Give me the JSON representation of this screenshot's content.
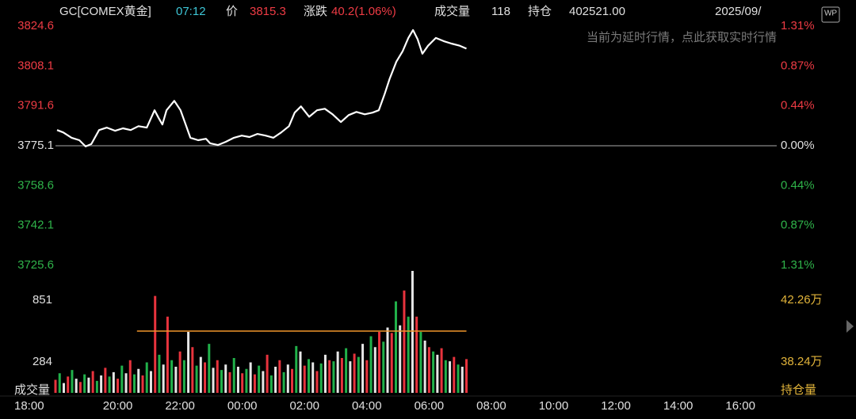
{
  "header": {
    "symbol": "GC[COMEX黄金]",
    "time": "07:12",
    "price_label": "价",
    "price": "3815.3",
    "change_label": "涨跌",
    "change": "40.2(1.06%)",
    "volume_label": "成交量",
    "volume": "118",
    "oi_label": "持仓",
    "oi": "402521.00",
    "date": "2025/09/",
    "notice": "当前为延时行情，点此获取实时行情",
    "logo": "WP"
  },
  "chart_data": [
    {
      "type": "line",
      "xlim": [
        0,
        1390
      ],
      "xticks": [
        {
          "value": 0,
          "label": "18:00"
        },
        {
          "value": 120,
          "label": "20:00"
        },
        {
          "value": 240,
          "label": "22:00"
        },
        {
          "value": 360,
          "label": "00:00"
        },
        {
          "value": 480,
          "label": "02:00"
        },
        {
          "value": 600,
          "label": "04:00"
        },
        {
          "value": 720,
          "label": "06:00"
        },
        {
          "value": 840,
          "label": "08:00"
        },
        {
          "value": 960,
          "label": "10:00"
        },
        {
          "value": 1080,
          "label": "12:00"
        },
        {
          "value": 1200,
          "label": "14:00"
        },
        {
          "value": 1320,
          "label": "16:00"
        }
      ],
      "ylim": [
        3725.6,
        3824.6
      ],
      "yticks": [
        3824.6,
        3808.1,
        3791.6,
        3775.1,
        3758.6,
        3742.1,
        3725.6
      ],
      "y2lim": [
        -1.31,
        1.31
      ],
      "y2ticks": [
        {
          "value": 1.31,
          "label": "1.31%"
        },
        {
          "value": 0.87,
          "label": "0.87%"
        },
        {
          "value": 0.44,
          "label": "0.44%"
        },
        {
          "value": 0,
          "label": "0.00%"
        },
        {
          "value": -0.44,
          "label": "0.44%"
        },
        {
          "value": -0.87,
          "label": "0.87%"
        },
        {
          "value": -1.31,
          "label": "1.31%"
        }
      ],
      "series": [
        {
          "color": "#ffffff",
          "x": [
            3,
            15,
            31,
            46,
            58,
            69,
            84,
            99,
            115,
            130,
            145,
            160,
            176,
            191,
            199,
            206,
            214,
            229,
            241,
            252,
            260,
            275,
            290,
            298,
            313,
            328,
            344,
            359,
            374,
            389,
            405,
            420,
            435,
            450,
            461,
            473,
            489,
            504,
            519,
            534,
            550,
            565,
            580,
            596,
            611,
            623,
            634,
            644,
            657,
            669,
            680,
            689,
            698,
            707,
            718,
            733,
            748,
            763,
            779,
            792
          ],
          "values": [
            3781.6,
            3780.6,
            3778.4,
            3777.4,
            3774.8,
            3775.8,
            3781.6,
            3782.6,
            3781.3,
            3782.3,
            3781.6,
            3783.2,
            3782.6,
            3789.8,
            3786.5,
            3783.9,
            3789.8,
            3793.7,
            3789.8,
            3783.2,
            3778.4,
            3777.4,
            3778.0,
            3776.1,
            3775.4,
            3776.7,
            3778.4,
            3779.3,
            3778.7,
            3780.0,
            3779.3,
            3778.4,
            3780.6,
            3783.2,
            3788.8,
            3791.4,
            3787.1,
            3789.8,
            3790.4,
            3788.1,
            3784.9,
            3787.8,
            3789.1,
            3788.1,
            3788.8,
            3789.8,
            3796.3,
            3802.8,
            3809.9,
            3814.2,
            3819.7,
            3823.0,
            3819.1,
            3813.2,
            3816.5,
            3819.7,
            3818.4,
            3817.4,
            3816.5,
            3815.3
          ]
        }
      ]
    },
    {
      "type": "bar",
      "ylabel": "成交量",
      "y2label": "持仓量",
      "xlim": [
        0,
        1390
      ],
      "ylim": [
        0,
        1120
      ],
      "yticks": [
        851,
        284
      ],
      "y2lim": [
        362300,
        441700
      ],
      "y2ticks": [
        {
          "value": 422600,
          "label": "42.26万"
        },
        {
          "value": 382400,
          "label": "38.24万"
        }
      ],
      "series": [
        {
          "color": "#e8333d",
          "x": [
            0,
            24,
            48,
            72,
            96,
            120,
            144,
            168,
            192,
            216,
            240,
            264,
            288,
            312,
            336,
            360,
            384,
            408,
            432,
            456,
            480,
            504,
            528,
            552,
            576,
            600,
            624,
            648,
            672,
            696,
            720,
            744,
            768,
            792
          ],
          "values": [
            120,
            150,
            100,
            200,
            230,
            130,
            300,
            160,
            890,
            700,
            380,
            420,
            280,
            300,
            190,
            180,
            170,
            350,
            300,
            220,
            250,
            200,
            300,
            320,
            360,
            300,
            560,
            550,
            940,
            700,
            420,
            410,
            330,
            310
          ]
        },
        {
          "color": "#21b14a",
          "x": [
            8,
            32,
            56,
            80,
            104,
            128,
            152,
            176,
            200,
            224,
            248,
            272,
            296,
            320,
            344,
            368,
            392,
            416,
            440,
            464,
            488,
            512,
            536,
            560,
            584,
            608,
            632,
            656,
            680,
            704,
            728,
            752,
            776
          ],
          "values": [
            180,
            210,
            170,
            110,
            150,
            250,
            170,
            280,
            350,
            300,
            300,
            250,
            450,
            210,
            320,
            220,
            250,
            160,
            190,
            430,
            310,
            270,
            290,
            410,
            330,
            520,
            470,
            840,
            700,
            560,
            380,
            300,
            260
          ]
        },
        {
          "color": "#e6e6e6",
          "x": [
            16,
            40,
            64,
            88,
            112,
            136,
            160,
            184,
            208,
            232,
            256,
            280,
            304,
            328,
            352,
            376,
            400,
            424,
            448,
            472,
            496,
            520,
            544,
            568,
            592,
            616,
            640,
            664,
            688,
            712,
            736,
            760,
            784
          ],
          "values": [
            90,
            130,
            140,
            160,
            190,
            180,
            220,
            200,
            260,
            240,
            560,
            330,
            230,
            260,
            240,
            280,
            200,
            240,
            260,
            380,
            280,
            350,
            380,
            290,
            450,
            420,
            600,
            620,
            1120,
            480,
            350,
            290,
            240
          ]
        },
        {
          "type": "line",
          "axis": "y2",
          "color": "#f0962a",
          "x": [
            157,
            792
          ],
          "values": [
            402521,
            402521
          ]
        }
      ]
    }
  ]
}
